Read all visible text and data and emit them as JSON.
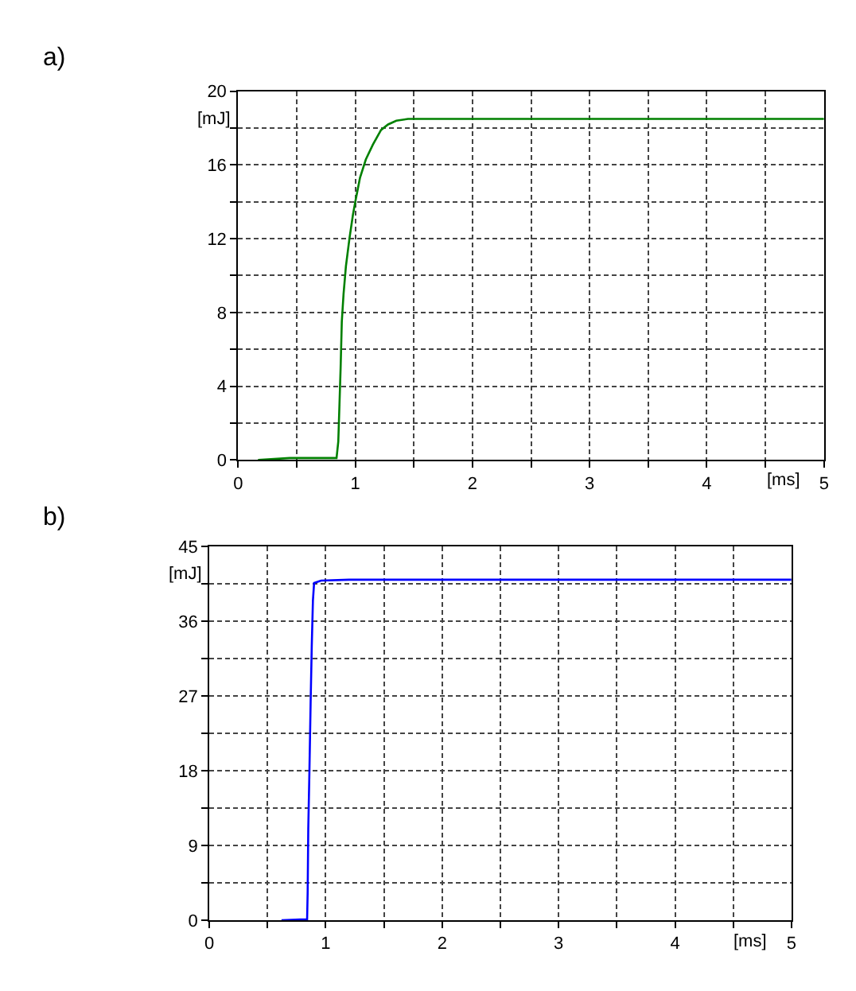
{
  "chart_data": [
    {
      "type": "line",
      "title": "a)",
      "xlabel": "[ms]",
      "ylabel": "[mJ]",
      "x": [
        0.17,
        0.44,
        0.84,
        0.855,
        0.865,
        0.875,
        0.885,
        0.9,
        0.92,
        0.95,
        0.98,
        1.0,
        1.04,
        1.09,
        1.15,
        1.22,
        1.28,
        1.35,
        1.45,
        1.6,
        5
      ],
      "series": [
        {
          "color": "#008000",
          "values": [
            0,
            0.1,
            0.1,
            1,
            3,
            5,
            7.5,
            9,
            10.5,
            12,
            13.3,
            14,
            15.3,
            16.3,
            17.1,
            17.9,
            18.2,
            18.4,
            18.5,
            18.5,
            18.5
          ]
        }
      ],
      "xlim": [
        0,
        5
      ],
      "ylim": [
        0,
        20
      ],
      "xticks": [
        0,
        {
          "value": 0.5,
          "label": null
        },
        1,
        {
          "value": 1.5,
          "label": null
        },
        2,
        {
          "value": 2.5,
          "label": null
        },
        3,
        {
          "value": 3.5,
          "label": null
        },
        4,
        {
          "value": 4.5,
          "label": null
        },
        5
      ],
      "yticks": [
        0,
        {
          "value": 2,
          "label": null
        },
        4,
        {
          "value": 6,
          "label": null
        },
        8,
        {
          "value": 10,
          "label": null
        },
        12,
        {
          "value": 14,
          "label": null
        },
        16,
        {
          "value": 18,
          "label": null
        },
        20
      ],
      "grid": true
    },
    {
      "type": "line",
      "title": "b)",
      "xlabel": "[ms]",
      "ylabel": "[mJ]",
      "x": [
        0.62,
        0.78,
        0.84,
        0.845,
        0.85,
        0.86,
        0.87,
        0.88,
        0.89,
        0.9,
        0.96,
        1.2,
        5
      ],
      "series": [
        {
          "color": "#0000ff",
          "values": [
            0,
            0.1,
            0.1,
            3.5,
            11,
            18,
            26,
            33,
            38.5,
            40.6,
            40.9,
            41,
            41
          ]
        }
      ],
      "xlim": [
        0,
        5
      ],
      "ylim": [
        0,
        45
      ],
      "xticks": [
        0,
        {
          "value": 0.5,
          "label": null
        },
        1,
        {
          "value": 1.5,
          "label": null
        },
        2,
        {
          "value": 2.5,
          "label": null
        },
        3,
        {
          "value": 3.5,
          "label": null
        },
        4,
        {
          "value": 4.5,
          "label": null
        },
        5
      ],
      "yticks": [
        0,
        {
          "value": 4.5,
          "label": null
        },
        9,
        {
          "value": 13.5,
          "label": null
        },
        18,
        {
          "value": 22.5,
          "label": null
        },
        27,
        {
          "value": 31.5,
          "label": null
        },
        36,
        {
          "value": 40.5,
          "label": null
        },
        45
      ],
      "grid": true
    }
  ]
}
